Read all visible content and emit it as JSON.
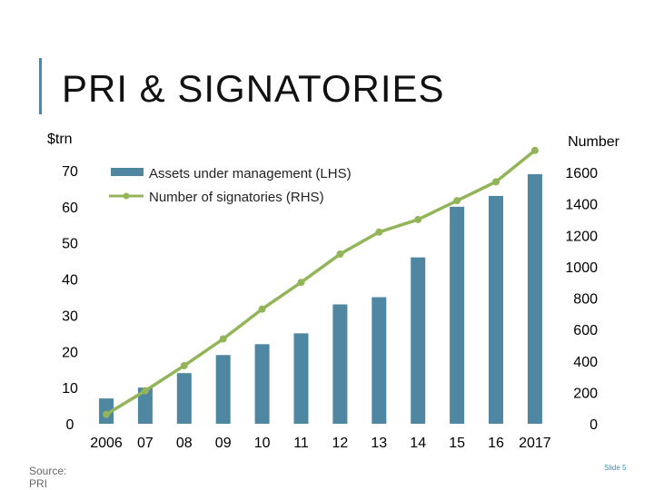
{
  "slide": {
    "title": "PRI & SIGNATORIES",
    "source_line1": "Source:",
    "source_line2": "PRI",
    "slide_number": "Slide 5"
  },
  "chart_data": {
    "type": "bar+line",
    "title": "",
    "categories": [
      "2006",
      "07",
      "08",
      "09",
      "10",
      "11",
      "12",
      "13",
      "14",
      "15",
      "16",
      "2017"
    ],
    "series": [
      {
        "name": "Assets under management (LHS)",
        "type": "bar",
        "axis": "left",
        "color": "#4f86a2",
        "values": [
          7,
          10,
          14,
          19,
          22,
          25,
          33,
          35,
          46,
          60,
          63,
          69
        ]
      },
      {
        "name": "Number of signatories (RHS)",
        "type": "line",
        "axis": "right",
        "color": "#93b55a",
        "values": [
          60,
          210,
          370,
          540,
          730,
          900,
          1080,
          1220,
          1300,
          1420,
          1540,
          1740
        ]
      }
    ],
    "left_axis": {
      "label": "$trn",
      "min": 0,
      "max": 80,
      "ticks": [
        0,
        10,
        20,
        30,
        40,
        50,
        60,
        70
      ]
    },
    "right_axis": {
      "label": "Number",
      "min": 0,
      "max": 1800,
      "ticks": [
        0,
        200,
        400,
        600,
        800,
        1000,
        1200,
        1400,
        1600
      ]
    },
    "grid": false,
    "legend": "top-left"
  }
}
